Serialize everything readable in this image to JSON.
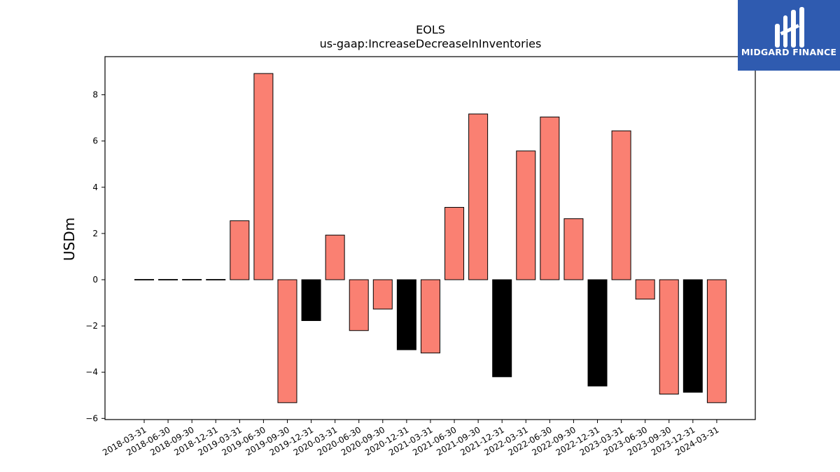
{
  "logo": {
    "text": "MIDGARD FINANCE"
  },
  "chart_data": {
    "type": "bar",
    "title": "EOLS",
    "subtitle": "us-gaap:IncreaseDecreaseInInventories",
    "xlabel": "",
    "ylabel": "USDm",
    "ylim": [
      -6.05,
      9.65
    ],
    "yticks": [
      -6,
      -4,
      -2,
      0,
      2,
      4,
      6,
      8
    ],
    "yticklabels": [
      "−6",
      "−4",
      "−2",
      "0",
      "2",
      "4",
      "6",
      "8"
    ],
    "grid": false,
    "categories": [
      "2018-03-31",
      "2018-06-30",
      "2018-09-30",
      "2018-12-31",
      "2019-03-31",
      "2019-06-30",
      "2019-09-30",
      "2019-12-31",
      "2020-03-31",
      "2020-06-30",
      "2020-09-30",
      "2020-12-31",
      "2021-03-31",
      "2021-06-30",
      "2021-09-30",
      "2021-12-31",
      "2022-03-31",
      "2022-06-30",
      "2022-09-30",
      "2022-12-31",
      "2023-03-31",
      "2023-06-30",
      "2023-09-30",
      "2023-12-31",
      "2024-03-31"
    ],
    "values": [
      0,
      0,
      0,
      0,
      2.55,
      8.92,
      -5.32,
      -1.77,
      1.93,
      -2.2,
      -1.27,
      -3.03,
      -3.17,
      3.13,
      7.17,
      -4.2,
      5.57,
      7.04,
      2.64,
      -4.6,
      6.44,
      -0.84,
      -4.95,
      -4.87,
      -5.32
    ],
    "bar_colors": [
      "#fa8072",
      "#fa8072",
      "#fa8072",
      "#fa8072",
      "#fa8072",
      "#fa8072",
      "#fa8072",
      "#000000",
      "#fa8072",
      "#fa8072",
      "#fa8072",
      "#000000",
      "#fa8072",
      "#fa8072",
      "#fa8072",
      "#000000",
      "#fa8072",
      "#fa8072",
      "#fa8072",
      "#000000",
      "#fa8072",
      "#fa8072",
      "#fa8072",
      "#000000",
      "#fa8072"
    ],
    "colors": {
      "positive_bar": "#fa8072",
      "highlight_bar": "#000000",
      "edge": "#000000"
    }
  }
}
